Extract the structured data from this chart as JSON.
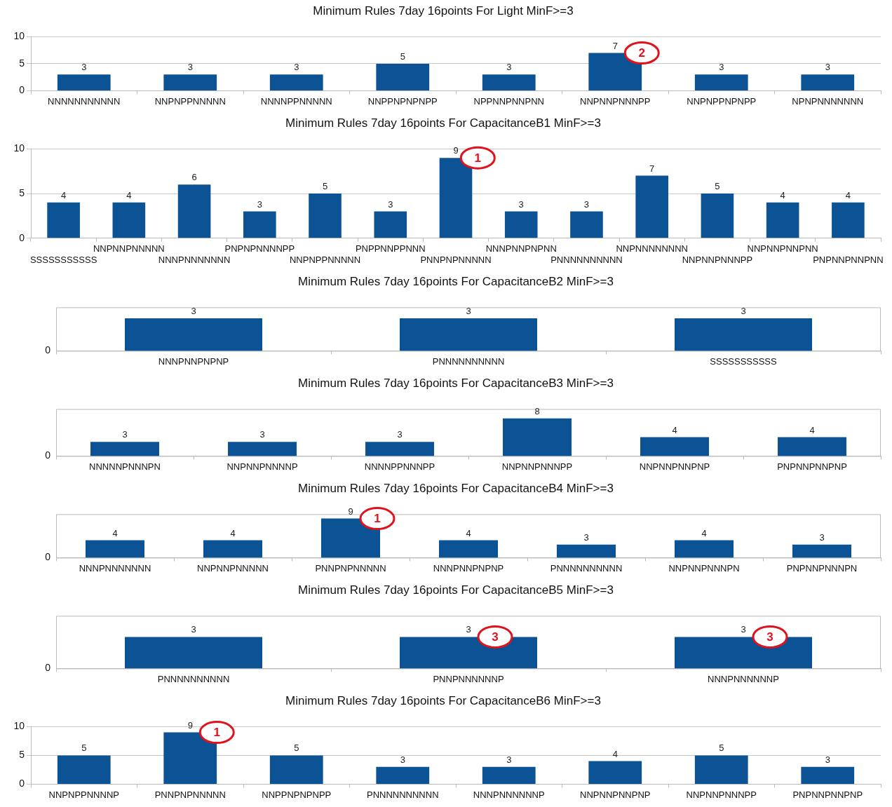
{
  "chart_data": [
    {
      "type": "bar",
      "title": "Minimum Rules 7day 16points For Light MinF>=3",
      "categories": [
        "NNNNNNNNNNN",
        "NNPNPPNNNNN",
        "NNNNPPNNNNN",
        "NNPPNPNPNPP",
        "NPPNNPNNPNN",
        "NNPNNPNNNPP",
        "NNPNPPNPNPP",
        "NPNPNNNNNNN"
      ],
      "values": [
        3,
        3,
        3,
        5,
        3,
        7,
        3,
        3
      ],
      "color": "#0b5394",
      "ylim": [
        0,
        10
      ],
      "yticks": [
        0,
        5,
        10
      ],
      "grid": "y",
      "data_labels": true,
      "annotations": [
        {
          "text": "2",
          "x": "NNPNNPNNNPP",
          "y": 7
        }
      ]
    },
    {
      "type": "bar",
      "title": "Minimum Rules 7day 16points For CapacitanceB1 MinF>=3",
      "categories": [
        "SSSSSSSSSSS",
        "NNPNNPNNNNN",
        "NNNPNNNNNNN",
        "PNPNPNNNNPP",
        "NNPNPPNNNNN",
        "PNPPNNPPNNN",
        "PNNPNPNNNNN",
        "NNNPNNPNPNN",
        "PNNNNNNNNNN",
        "NNPNNNNNNNN",
        "NNPNNPNNNPP",
        "NNPNNPNNPNN",
        "PNPNNPNNPNN"
      ],
      "values": [
        4,
        4,
        6,
        3,
        5,
        3,
        9,
        3,
        3,
        7,
        5,
        4,
        4
      ],
      "color": "#0b5394",
      "ylim": [
        0,
        10
      ],
      "yticks": [
        0,
        5,
        10
      ],
      "grid": "y",
      "data_labels": true,
      "annotations": [
        {
          "text": "1",
          "x": "PNNPNPNNNNN",
          "y": 9
        }
      ]
    },
    {
      "type": "bar",
      "title": "Minimum Rules 7day 16points For CapacitanceB2 MinF>=3",
      "categories": [
        "NNNPNNPNPNP",
        "PNNNNNNNNNN",
        "SSSSSSSSSSS"
      ],
      "values": [
        3,
        3,
        3
      ],
      "color": "#0b5394",
      "ylim": [
        0,
        4
      ],
      "data_labels": true,
      "annotations": [
        "0"
      ]
    },
    {
      "type": "bar",
      "title": "Minimum Rules 7day 16points For CapacitanceB3 MinF>=3",
      "categories": [
        "NNNNNPNNNPN",
        "NNPNNPNNNNP",
        "NNNNPPNNNPP",
        "NNPNNPNNNPP",
        "NNPNNPNNPNP",
        "PNPNNPNNPNP"
      ],
      "values": [
        3,
        3,
        3,
        8,
        4,
        4
      ],
      "color": "#0b5394",
      "ylim": [
        0,
        10
      ],
      "data_labels": true,
      "annotations": [
        "0"
      ]
    },
    {
      "type": "bar",
      "title": "Minimum Rules 7day 16points For CapacitanceB4 MinF>=3",
      "categories": [
        "NNNPNNNNNNN",
        "NNPNNPNNNNN",
        "PNNPNPNNNNN",
        "NNNPNNPNPNP",
        "PNNNNNNNNNN",
        "NNPNNPNNNPN",
        "PNPNNPNNNPN"
      ],
      "values": [
        4,
        4,
        9,
        4,
        3,
        4,
        3
      ],
      "color": "#0b5394",
      "ylim": [
        0,
        10
      ],
      "data_labels": true,
      "annotations": [
        "0",
        {
          "text": "1",
          "x": "PNNPNPNNNNN",
          "y": 9
        }
      ]
    },
    {
      "type": "bar",
      "title": "Minimum Rules 7day 16points For CapacitanceB5 MinF>=3",
      "categories": [
        "PNNNNNNNNNN",
        "PNNPNNNNNNP",
        "NNNPNNNNNNP"
      ],
      "values": [
        3,
        3,
        3
      ],
      "color": "#0b5394",
      "ylim": [
        0,
        5
      ],
      "data_labels": true,
      "annotations": [
        "0",
        {
          "text": "3",
          "x": "PNNPNNNNNNP",
          "y": 3
        },
        {
          "text": "3",
          "x": "NNNPNNNNNNP",
          "y": 3
        }
      ]
    },
    {
      "type": "bar",
      "title": "Minimum Rules 7day 16points For CapacitanceB6 MinF>=3",
      "categories": [
        "NNPNPPNNNNP",
        "PNNPNPNNNNN",
        "NNPPNPNPNPP",
        "PNNNNNNNNNN",
        "NNNPNNNNNNP",
        "NNPNNPNNPNP",
        "NNPNNPNNNPP",
        "PNPNNPNNPNP"
      ],
      "values": [
        5,
        9,
        5,
        3,
        3,
        4,
        5,
        3
      ],
      "color": "#0b5394",
      "ylim": [
        0,
        10
      ],
      "yticks": [
        0,
        5,
        10
      ],
      "grid": "y",
      "data_labels": true,
      "annotations": [
        {
          "text": "1",
          "x": "PNNPNPNNNNN",
          "y": 9
        }
      ]
    }
  ]
}
